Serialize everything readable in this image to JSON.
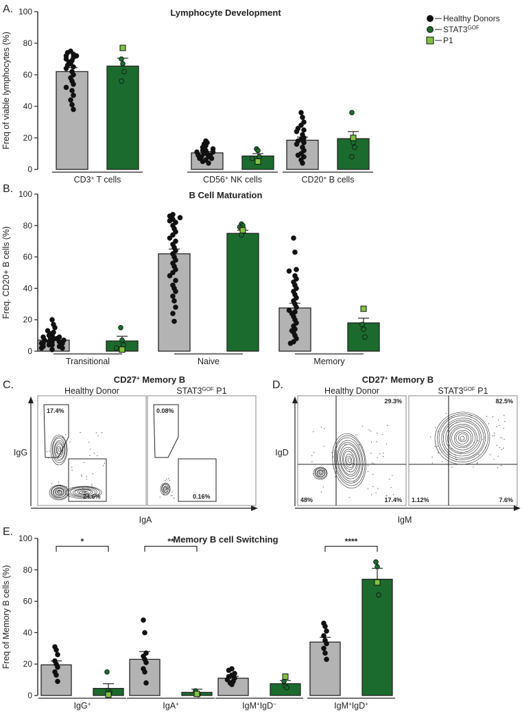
{
  "colors": {
    "healthy": "#b3b3b3",
    "stat3": "#1c6b2e",
    "p1": "#7fc241",
    "dot": "#111111"
  },
  "legend": [
    {
      "label": "Healthy Donors",
      "marker": "circle",
      "color": "#111111"
    },
    {
      "label": "STAT3",
      "sup": "GOF",
      "marker": "circle",
      "color": "#1c6b2e"
    },
    {
      "label": "P1",
      "marker": "square",
      "color": "#7fc241"
    }
  ],
  "chart_data": [
    {
      "panel": "A.",
      "type": "bar",
      "title": "Lymphocyte Development",
      "ylabel": "Freq of viable lymphocytes (%)",
      "ylim": [
        0,
        100
      ],
      "yticks": [
        0,
        20,
        40,
        60,
        80,
        100
      ],
      "groups": [
        {
          "label": "CD3",
          "sup": "+",
          "rest": " T cells",
          "bars": [
            {
              "series": "Healthy Donors",
              "value": 62,
              "sem": 2.5,
              "points": [
                75,
                74,
                73,
                72,
                72,
                71,
                70,
                69,
                68,
                67,
                66,
                65,
                64,
                62,
                60,
                58,
                56,
                54,
                52,
                50,
                47,
                44,
                41,
                38
              ]
            },
            {
              "series": "STAT3GOF",
              "value": 65.5,
              "sem": 5,
              "points": [
                70,
                67,
                62,
                56
              ],
              "p1": 77
            }
          ]
        },
        {
          "label": "CD56",
          "sup": "+",
          "rest": " NK cells",
          "bars": [
            {
              "series": "Healthy Donors",
              "value": 10.5,
              "sem": 1,
              "points": [
                18,
                17,
                16,
                15,
                14,
                13,
                12,
                12,
                11,
                11,
                10,
                10,
                9,
                9,
                8,
                8,
                7,
                7,
                6,
                5,
                4
              ]
            },
            {
              "series": "STAT3GOF",
              "value": 8.5,
              "sem": 1.5,
              "points": [
                13,
                12,
                8,
                7
              ],
              "p1": 5
            }
          ]
        },
        {
          "label": "CD20",
          "sup": "+",
          "rest": " B cells",
          "bars": [
            {
              "series": "Healthy Donors",
              "value": 18.5,
              "sem": 2,
              "points": [
                36,
                33,
                30,
                28,
                26,
                25,
                24,
                22,
                20,
                19,
                18,
                17,
                16,
                14,
                12,
                10,
                9,
                8,
                6,
                4
              ]
            },
            {
              "series": "STAT3GOF",
              "value": 19.5,
              "sem": 4.5,
              "points": [
                36,
                17,
                14,
                8
              ],
              "p1": 20
            }
          ]
        }
      ]
    },
    {
      "panel": "B.",
      "type": "bar",
      "title": "B Cell Maturation",
      "ylabel": "Freq. CD20+ B cells (%)",
      "ylim": [
        0,
        100
      ],
      "yticks": [
        0,
        20,
        40,
        60,
        80,
        100
      ],
      "groups": [
        {
          "label": "Transitional",
          "sup": "",
          "rest": "",
          "bars": [
            {
              "series": "Healthy Donors",
              "value": 7,
              "sem": 0.8,
              "points": [
                20,
                17,
                15,
                13,
                12,
                11,
                10,
                10,
                9,
                9,
                8,
                8,
                8,
                7,
                7,
                6,
                6,
                6,
                5,
                5,
                5,
                4,
                4,
                3,
                3,
                2,
                2,
                1
              ]
            },
            {
              "series": "STAT3GOF",
              "value": 6.5,
              "sem": 3,
              "points": [
                15,
                7,
                4,
                2
              ],
              "p1": 1
            }
          ]
        },
        {
          "label": "Naive",
          "sup": "",
          "rest": "",
          "bars": [
            {
              "series": "Healthy Donors",
              "value": 62,
              "sem": 3,
              "points": [
                87,
                86,
                85,
                84,
                83,
                82,
                80,
                78,
                76,
                74,
                72,
                70,
                68,
                66,
                64,
                62,
                60,
                58,
                56,
                54,
                52,
                50,
                48,
                45,
                42,
                40,
                38,
                35,
                32,
                28,
                24,
                19
              ]
            },
            {
              "series": "STAT3GOF",
              "value": 75,
              "sem": 2,
              "points": [
                81,
                80,
                79,
                74
              ],
              "p1": 77
            }
          ]
        },
        {
          "label": "Memory",
          "sup": "",
          "rest": "",
          "bars": [
            {
              "series": "Healthy Donors",
              "value": 27.5,
              "sem": 3,
              "points": [
                72,
                63,
                52,
                51,
                48,
                46,
                44,
                42,
                40,
                38,
                36,
                34,
                32,
                30,
                28,
                26,
                25,
                24,
                22,
                20,
                18,
                16,
                14,
                13,
                12,
                10,
                8,
                6,
                5
              ]
            },
            {
              "series": "STAT3GOF",
              "value": 18,
              "sem": 3,
              "points": [
                17,
                14,
                9
              ],
              "p1": 27
            }
          ]
        }
      ]
    },
    {
      "panel": "E.",
      "type": "bar",
      "title": "Memory B cell Switching",
      "ylabel": "Freq of Memory B cells (%)",
      "ylim": [
        0,
        100
      ],
      "yticks": [
        0,
        20,
        40,
        60,
        80,
        100
      ],
      "significance": [
        {
          "group": 0,
          "label": "*"
        },
        {
          "group": 1,
          "label": "**"
        },
        {
          "group": 3,
          "label": "****"
        }
      ],
      "groups": [
        {
          "label": "IgG",
          "sup": "+",
          "rest": "",
          "bars": [
            {
              "series": "Healthy Donors",
              "value": 19.5,
              "sem": 2.5,
              "points": [
                31,
                29,
                26,
                22,
                20,
                18,
                15,
                13,
                9
              ]
            },
            {
              "series": "STAT3GOF",
              "value": 4.5,
              "sem": 3,
              "points": [
                15,
                3,
                2
              ],
              "p1": 0.5
            }
          ]
        },
        {
          "label": "IgA",
          "sup": "+",
          "rest": "",
          "bars": [
            {
              "series": "Healthy Donors",
              "value": 23,
              "sem": 5,
              "points": [
                48,
                40,
                27,
                25,
                23,
                21,
                17,
                15,
                8
              ]
            },
            {
              "series": "STAT3GOF",
              "value": 2,
              "sem": 2,
              "points": [
                3,
                1,
                0.5
              ],
              "p1": 1
            }
          ]
        },
        {
          "label": "IgM",
          "sup": "+",
          "mid": "IgD",
          "sup2": "−",
          "rest": "",
          "bars": [
            {
              "series": "Healthy Donors",
              "value": 11,
              "sem": 1.2,
              "points": [
                17,
                16,
                14,
                13,
                12,
                11,
                10,
                9,
                8,
                7
              ]
            },
            {
              "series": "STAT3GOF",
              "value": 7.5,
              "sem": 2,
              "points": [
                9,
                6,
                5
              ],
              "p1": 12
            }
          ]
        },
        {
          "label": "IgM",
          "sup": "+",
          "mid": "IgD",
          "sup2": "+",
          "rest": "",
          "bars": [
            {
              "series": "Healthy Donors",
              "value": 34,
              "sem": 3,
              "points": [
                46,
                44,
                41,
                38,
                35,
                33,
                30,
                27,
                23
              ]
            },
            {
              "series": "STAT3GOF",
              "value": 74,
              "sem": 7,
              "points": [
                85,
                82,
                64
              ],
              "p1": 72
            }
          ]
        }
      ]
    }
  ],
  "flow_c": {
    "panel": "C.",
    "title": "CD27",
    "title_sup": "+",
    "title_rest": " Memory B",
    "xaxis": "IgA",
    "yaxis": "IgG",
    "plots": [
      {
        "label": "Healthy Donor",
        "label_sup": "",
        "label_rest": "",
        "gate1": "17.4%",
        "gate2": "24.6%"
      },
      {
        "label": "STAT3",
        "label_sup": "GOF",
        "label_rest": " P1",
        "gate1": "0.08%",
        "gate2": "0.16%"
      }
    ]
  },
  "flow_d": {
    "panel": "D.",
    "title": "CD27",
    "title_sup": "+",
    "title_rest": " Memory B",
    "xaxis": "IgM",
    "yaxis": "IgD",
    "plots": [
      {
        "label": "Healthy Donor",
        "label_sup": "",
        "label_rest": "",
        "q_ur": "29.3%",
        "q_ll": "48%",
        "q_lr": "17.4%"
      },
      {
        "label": "STAT3",
        "label_sup": "GOF",
        "label_rest": " P1",
        "q_ur": "82.5%",
        "q_ll": "1.12%",
        "q_lr": "7.6%"
      }
    ]
  }
}
